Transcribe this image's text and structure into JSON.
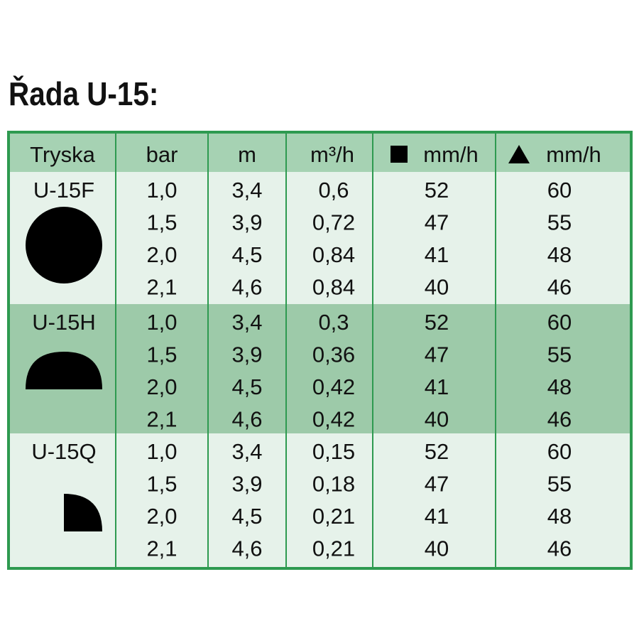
{
  "title": "Řada U-15:",
  "table": {
    "header": [
      "Tryska",
      "bar",
      "m",
      "m³/h",
      "mm/h",
      "mm/h"
    ],
    "groups": [
      {
        "name": "U-15F",
        "rows": [
          [
            "1,0",
            "3,4",
            "0,6",
            "52",
            "60"
          ],
          [
            "1,5",
            "3,9",
            "0,72",
            "47",
            "55"
          ],
          [
            "2,0",
            "4,5",
            "0,84",
            "41",
            "48"
          ],
          [
            "2,1",
            "4,6",
            "0,84",
            "40",
            "46"
          ]
        ]
      },
      {
        "name": "U-15H",
        "rows": [
          [
            "1,0",
            "3,4",
            "0,3",
            "52",
            "60"
          ],
          [
            "1,5",
            "3,9",
            "0,36",
            "47",
            "55"
          ],
          [
            "2,0",
            "4,5",
            "0,42",
            "41",
            "48"
          ],
          [
            "2,1",
            "4,6",
            "0,42",
            "40",
            "46"
          ]
        ]
      },
      {
        "name": "U-15Q",
        "rows": [
          [
            "1,0",
            "3,4",
            "0,15",
            "52",
            "60"
          ],
          [
            "1,5",
            "3,9",
            "0,18",
            "47",
            "55"
          ],
          [
            "2,0",
            "4,5",
            "0,21",
            "41",
            "48"
          ],
          [
            "2,1",
            "4,6",
            "0,21",
            "40",
            "46"
          ]
        ]
      }
    ]
  }
}
